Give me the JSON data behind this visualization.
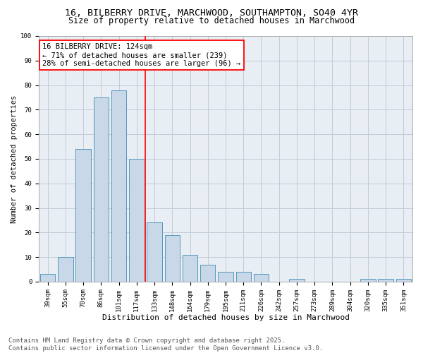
{
  "title_line1": "16, BILBERRY DRIVE, MARCHWOOD, SOUTHAMPTON, SO40 4YR",
  "title_line2": "Size of property relative to detached houses in Marchwood",
  "xlabel": "Distribution of detached houses by size in Marchwood",
  "ylabel": "Number of detached properties",
  "categories": [
    "39sqm",
    "55sqm",
    "70sqm",
    "86sqm",
    "101sqm",
    "117sqm",
    "133sqm",
    "148sqm",
    "164sqm",
    "179sqm",
    "195sqm",
    "211sqm",
    "226sqm",
    "242sqm",
    "257sqm",
    "273sqm",
    "289sqm",
    "304sqm",
    "320sqm",
    "335sqm",
    "351sqm"
  ],
  "values": [
    3,
    10,
    54,
    75,
    78,
    50,
    24,
    19,
    11,
    7,
    4,
    4,
    3,
    0,
    1,
    0,
    0,
    0,
    1,
    1,
    1
  ],
  "bar_color": "#c8d8e8",
  "bar_edgecolor": "#5599bb",
  "grid_color": "#c0ccd8",
  "background_color": "#e8eef4",
  "vline_color": "red",
  "annotation_text": "16 BILBERRY DRIVE: 124sqm\n← 71% of detached houses are smaller (239)\n28% of semi-detached houses are larger (96) →",
  "annotation_box_edgecolor": "red",
  "ylim": [
    0,
    100
  ],
  "yticks": [
    0,
    10,
    20,
    30,
    40,
    50,
    60,
    70,
    80,
    90,
    100
  ],
  "footer_line1": "Contains HM Land Registry data © Crown copyright and database right 2025.",
  "footer_line2": "Contains public sector information licensed under the Open Government Licence v3.0.",
  "title_fontsize": 9.5,
  "subtitle_fontsize": 8.5,
  "xlabel_fontsize": 8,
  "ylabel_fontsize": 7.5,
  "tick_fontsize": 6.5,
  "annotation_fontsize": 7.5,
  "footer_fontsize": 6.5
}
